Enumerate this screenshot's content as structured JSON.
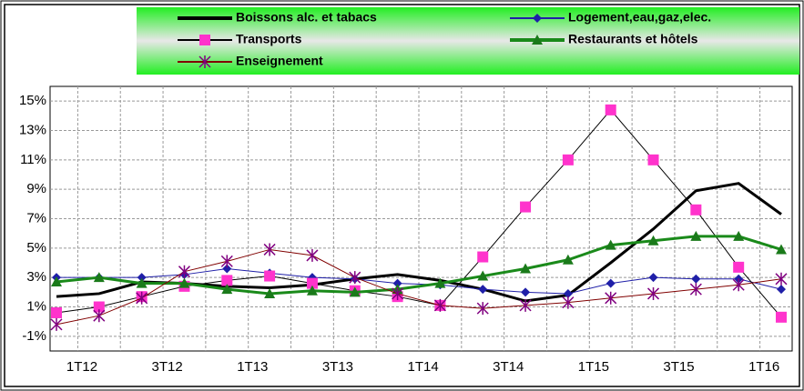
{
  "chart_data": {
    "type": "line",
    "categories": [
      "1T12",
      null,
      "3T12",
      null,
      "1T13",
      null,
      "3T13",
      null,
      "1T14",
      null,
      "3T14",
      null,
      "1T15",
      null,
      "3T15",
      null,
      "1T16",
      null
    ],
    "series": [
      {
        "name": "Boissons alc. et tabacs",
        "color": "#000000",
        "marker": "none",
        "marker_color": "#000000",
        "line_width": 3,
        "values": [
          1.7,
          1.9,
          2.7,
          2.6,
          2.4,
          2.3,
          2.5,
          2.9,
          3.2,
          2.8,
          2.2,
          1.4,
          1.8,
          4.0,
          6.3,
          8.9,
          9.4,
          7.3
        ]
      },
      {
        "name": "Logement,eau,gaz,elec.",
        "color": "#1f1fa8",
        "marker": "diamond",
        "marker_color": "#1f1fa8",
        "line_width": 1,
        "values": [
          3.0,
          3.0,
          3.0,
          3.2,
          3.6,
          3.3,
          3.0,
          2.9,
          2.6,
          2.5,
          2.2,
          2.0,
          1.9,
          2.6,
          3.0,
          2.9,
          2.9,
          2.2
        ]
      },
      {
        "name": "Transports",
        "color": "#000000",
        "marker": "square",
        "marker_color": "#ff33cc",
        "line_width": 1,
        "values": [
          0.6,
          1.0,
          1.7,
          2.4,
          2.8,
          3.1,
          2.6,
          2.1,
          1.7,
          1.1,
          4.4,
          7.8,
          11.0,
          14.4,
          11.0,
          7.6,
          3.7,
          0.3
        ]
      },
      {
        "name": "Restaurants et hôtels",
        "color": "#1a8a1a",
        "marker": "triangle",
        "marker_color": "#1a7a1a",
        "line_width": 3,
        "values": [
          2.7,
          3.0,
          2.6,
          2.6,
          2.2,
          1.9,
          2.1,
          2.0,
          2.2,
          2.6,
          3.1,
          3.6,
          4.2,
          5.2,
          5.5,
          5.8,
          5.8,
          4.9
        ]
      },
      {
        "name": "Enseignement",
        "color": "#800000",
        "marker": "asterisk",
        "marker_color": "#800080",
        "line_width": 1,
        "values": [
          -0.2,
          0.4,
          1.6,
          3.4,
          4.1,
          4.9,
          4.5,
          3.0,
          1.9,
          1.1,
          0.9,
          1.1,
          1.3,
          1.6,
          1.9,
          2.2,
          2.5,
          2.9
        ]
      }
    ],
    "ylim": [
      -2,
      16
    ],
    "yticks": [
      {
        "value": -1,
        "label": "-1%"
      },
      {
        "value": 1,
        "label": "1%"
      },
      {
        "value": 3,
        "label": "3%"
      },
      {
        "value": 5,
        "label": "5%"
      },
      {
        "value": 7,
        "label": "7%"
      },
      {
        "value": 9,
        "label": "9%"
      },
      {
        "value": 11,
        "label": "11%"
      },
      {
        "value": 13,
        "label": "13%"
      },
      {
        "value": 15,
        "label": "15%"
      }
    ],
    "grid": true,
    "legend": "top"
  }
}
